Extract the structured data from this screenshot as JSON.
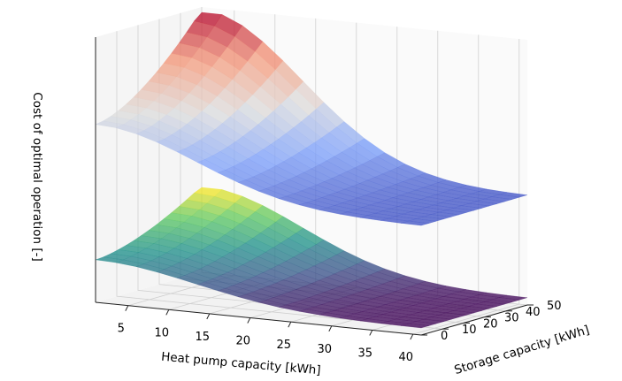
{
  "chart_data": {
    "type": "surface3d",
    "xlabel": "Heat pump capacity [kWh]",
    "ylabel": "Storage capacity [kWh]",
    "zlabel": "Cost of optimal operation [-]",
    "x_ticks": [
      5,
      10,
      15,
      20,
      25,
      30,
      35,
      40
    ],
    "y_ticks": [
      0,
      10,
      20,
      30,
      40,
      50
    ],
    "xlim": [
      1,
      41
    ],
    "ylim": [
      0,
      50
    ],
    "zlim": [
      0,
      1
    ],
    "z_tick_labels_shown": false,
    "grid": true,
    "series": [
      {
        "colormap": "coolwarm",
        "level": "upper",
        "z_min_at_x40": 0.4,
        "z_max": 0.98,
        "z_at_x1_y0": 0.85
      },
      {
        "colormap": "viridis",
        "level": "lower",
        "z_min_at_x40": 0.02,
        "z_max": 0.32,
        "z_at_x1_y0": 0.06
      }
    ]
  }
}
